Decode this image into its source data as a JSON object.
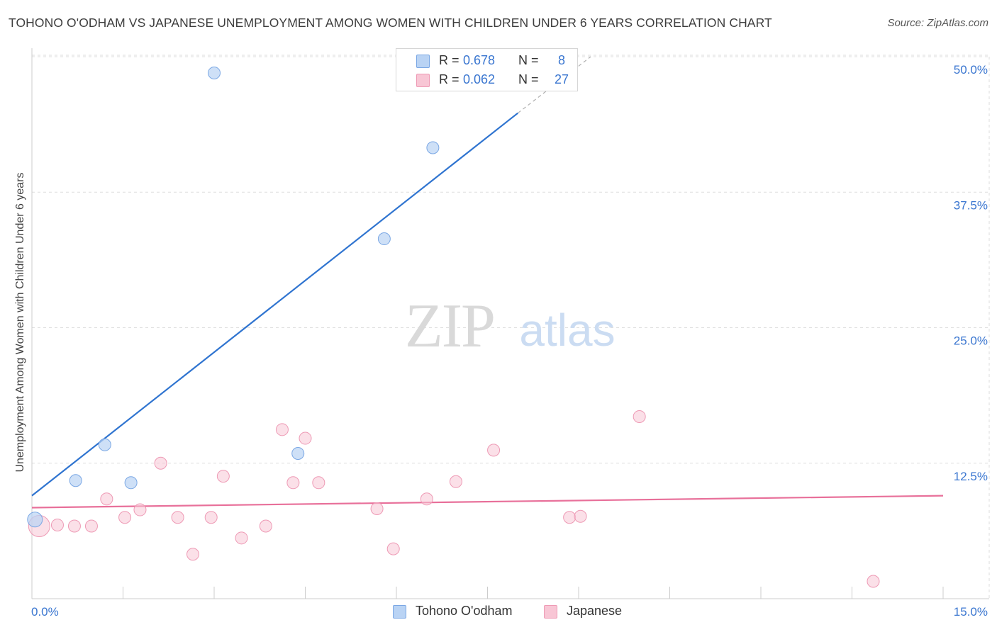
{
  "header": {
    "title": "TOHONO O'ODHAM VS JAPANESE UNEMPLOYMENT AMONG WOMEN WITH CHILDREN UNDER 6 YEARS CORRELATION CHART",
    "source": "Source: ZipAtlas.com"
  },
  "watermark": {
    "zip": "ZIP",
    "atlas": "atlas"
  },
  "legend": {
    "r_label": "R =",
    "n_label": "N =",
    "series": [
      {
        "name": "Tohono O'odham",
        "r": "0.678",
        "n": "8"
      },
      {
        "name": "Japanese",
        "r": "0.062",
        "n": "27"
      }
    ]
  },
  "colors": {
    "blue_fill": "#b9d3f4",
    "blue_stroke": "#7aa7e4",
    "blue_line": "#2f74d0",
    "pink_fill": "#f8c6d5",
    "pink_stroke": "#ee9ab5",
    "pink_line": "#e8709a",
    "grid": "#dedede",
    "tick_label": "#3a76d0"
  },
  "chart_data": {
    "type": "scatter",
    "title": "TOHONO O'ODHAM VS JAPANESE UNEMPLOYMENT AMONG WOMEN WITH CHILDREN UNDER 6 YEARS CORRELATION CHART",
    "xlabel": "",
    "ylabel": "Unemployment Among Women with Children Under 6 years",
    "xlim": [
      0,
      15
    ],
    "ylim": [
      0,
      50
    ],
    "x_tick_labels": [
      "0.0%",
      "15.0%"
    ],
    "y_ticks": [
      12.5,
      25.0,
      37.5,
      50.0
    ],
    "y_tick_labels": [
      "12.5%",
      "25.0%",
      "37.5%",
      "50.0%"
    ],
    "grid": true,
    "series": [
      {
        "name": "Tohono O'odham",
        "points": [
          {
            "x": 0.05,
            "y": 7.3,
            "big": true
          },
          {
            "x": 0.72,
            "y": 10.9
          },
          {
            "x": 1.2,
            "y": 14.2
          },
          {
            "x": 1.63,
            "y": 10.7
          },
          {
            "x": 3.0,
            "y": 48.5
          },
          {
            "x": 4.38,
            "y": 13.4
          },
          {
            "x": 5.8,
            "y": 33.2
          },
          {
            "x": 6.6,
            "y": 41.6
          }
        ],
        "trend": {
          "x0": 0,
          "y0": 9.5,
          "x1": 8.0,
          "y1": 44.8,
          "dash_x1": 9.2,
          "dash_y1": 50.0
        }
      },
      {
        "name": "Japanese",
        "points": [
          {
            "x": 0.12,
            "y": 6.7,
            "big": true
          },
          {
            "x": 0.42,
            "y": 6.8
          },
          {
            "x": 0.7,
            "y": 6.7
          },
          {
            "x": 0.98,
            "y": 6.7
          },
          {
            "x": 1.23,
            "y": 9.2
          },
          {
            "x": 1.53,
            "y": 7.5
          },
          {
            "x": 1.78,
            "y": 8.2
          },
          {
            "x": 2.12,
            "y": 12.5
          },
          {
            "x": 2.4,
            "y": 7.5
          },
          {
            "x": 2.65,
            "y": 4.1
          },
          {
            "x": 2.95,
            "y": 7.5
          },
          {
            "x": 3.15,
            "y": 11.3
          },
          {
            "x": 3.45,
            "y": 5.6
          },
          {
            "x": 3.85,
            "y": 6.7
          },
          {
            "x": 4.12,
            "y": 15.6
          },
          {
            "x": 4.3,
            "y": 10.7
          },
          {
            "x": 4.5,
            "y": 14.8
          },
          {
            "x": 4.72,
            "y": 10.7
          },
          {
            "x": 5.68,
            "y": 8.3
          },
          {
            "x": 5.95,
            "y": 4.6
          },
          {
            "x": 6.5,
            "y": 9.2
          },
          {
            "x": 6.98,
            "y": 10.8
          },
          {
            "x": 7.6,
            "y": 13.7
          },
          {
            "x": 8.85,
            "y": 7.5
          },
          {
            "x": 9.03,
            "y": 7.6
          },
          {
            "x": 10.0,
            "y": 16.8
          },
          {
            "x": 13.85,
            "y": 1.6
          }
        ],
        "trend": {
          "x0": 0,
          "y0": 8.4,
          "x1": 15.0,
          "y1": 9.5
        }
      }
    ]
  }
}
